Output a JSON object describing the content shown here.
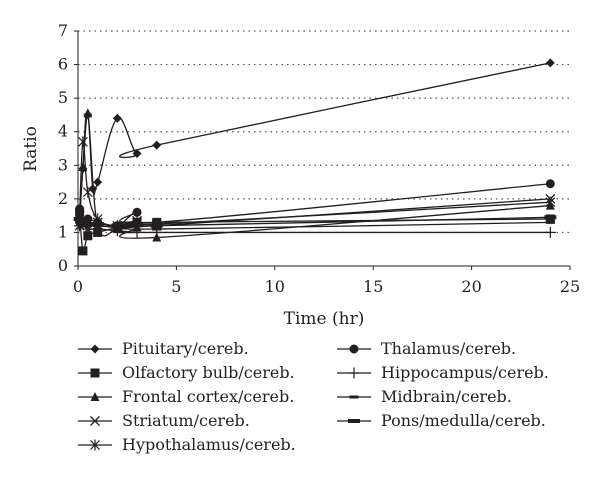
{
  "chart_data": {
    "type": "line",
    "xlabel": "Time (hr)",
    "ylabel": "Ratio",
    "xlim": [
      0,
      25
    ],
    "ylim": [
      0,
      7
    ],
    "xticks": [
      "0",
      "5",
      "10",
      "15",
      "20",
      "25"
    ],
    "yticks": [
      "0",
      "1",
      "2",
      "3",
      "4",
      "5",
      "6",
      "7"
    ],
    "grid": "horizontal dotted",
    "legend_position": "bottom",
    "series": [
      {
        "name": "Pituitary/cereb.",
        "marker": "diamond",
        "points": [
          [
            0.083,
            1.5
          ],
          [
            0.25,
            2.9
          ],
          [
            0.5,
            4.5
          ],
          [
            0.75,
            2.3
          ],
          [
            1,
            2.5
          ],
          [
            2,
            4.4
          ],
          [
            3,
            3.35
          ],
          [
            4,
            3.6
          ],
          [
            24,
            6.05
          ]
        ]
      },
      {
        "name": "Olfactory bulb/cereb.",
        "marker": "square",
        "points": [
          [
            0.083,
            1.6
          ],
          [
            0.25,
            0.45
          ],
          [
            0.5,
            0.9
          ],
          [
            1,
            1.0
          ],
          [
            2,
            1.15
          ],
          [
            3,
            1.3
          ],
          [
            4,
            1.3
          ],
          [
            24,
            1.4
          ]
        ]
      },
      {
        "name": "Frontal cortex/cereb.",
        "marker": "triangle",
        "points": [
          [
            0.083,
            1.3
          ],
          [
            0.25,
            2.95
          ],
          [
            0.5,
            4.55
          ],
          [
            1,
            1.2
          ],
          [
            2,
            1.1
          ],
          [
            3,
            1.15
          ],
          [
            4,
            0.85
          ],
          [
            24,
            1.8
          ]
        ]
      },
      {
        "name": "Striatum/cereb.",
        "marker": "x",
        "points": [
          [
            0.083,
            1.2
          ],
          [
            0.25,
            1.25
          ],
          [
            0.5,
            1.1
          ],
          [
            1,
            1.3
          ],
          [
            2,
            1.15
          ],
          [
            3,
            1.3
          ],
          [
            4,
            1.2
          ],
          [
            24,
            2.0
          ]
        ]
      },
      {
        "name": "Hypothalamus/cereb.",
        "marker": "asterisk",
        "points": [
          [
            0.083,
            1.5
          ],
          [
            0.25,
            3.7
          ],
          [
            0.5,
            2.2
          ],
          [
            1,
            1.4
          ],
          [
            2,
            1.2
          ],
          [
            3,
            1.35
          ],
          [
            4,
            1.25
          ],
          [
            24,
            1.9
          ]
        ]
      },
      {
        "name": "Thalamus/cereb.",
        "marker": "circle",
        "points": [
          [
            0.083,
            1.7
          ],
          [
            0.25,
            1.3
          ],
          [
            0.5,
            1.4
          ],
          [
            1,
            1.3
          ],
          [
            2,
            1.2
          ],
          [
            3,
            1.6
          ],
          [
            4,
            1.3
          ],
          [
            24,
            2.45
          ]
        ]
      },
      {
        "name": "Hippocampus/cereb.",
        "marker": "plus",
        "points": [
          [
            0.083,
            1.2
          ],
          [
            0.25,
            1.25
          ],
          [
            0.5,
            1.1
          ],
          [
            1,
            1.1
          ],
          [
            2,
            1.05
          ],
          [
            3,
            1.0
          ],
          [
            4,
            1.0
          ],
          [
            24,
            1.0
          ]
        ]
      },
      {
        "name": "Midbrain/cereb.",
        "marker": "dash",
        "points": [
          [
            0.083,
            1.3
          ],
          [
            0.25,
            1.2
          ],
          [
            0.5,
            1.2
          ],
          [
            1,
            1.2
          ],
          [
            2,
            1.15
          ],
          [
            3,
            1.2
          ],
          [
            4,
            1.1
          ],
          [
            24,
            1.3
          ]
        ]
      },
      {
        "name": "Pons/medulla/cereb.",
        "marker": "bar",
        "points": [
          [
            0.083,
            1.4
          ],
          [
            0.25,
            1.3
          ],
          [
            0.5,
            1.25
          ],
          [
            1,
            1.25
          ],
          [
            2,
            1.2
          ],
          [
            3,
            1.25
          ],
          [
            4,
            1.2
          ],
          [
            24,
            1.45
          ]
        ]
      }
    ]
  }
}
